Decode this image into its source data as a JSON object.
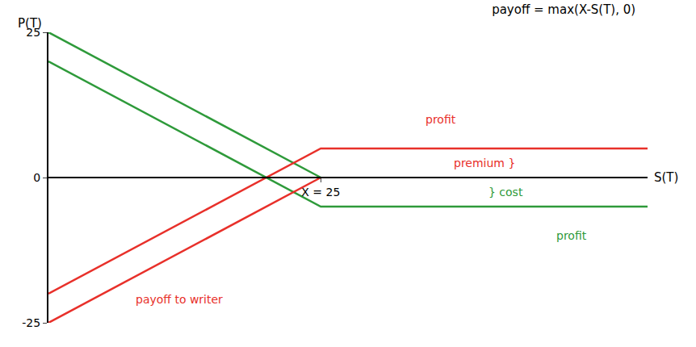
{
  "chart_data": {
    "type": "line",
    "title": "payoff = max(X-S(T), 0)",
    "x_label": "S(T)",
    "y_label": "P(T)",
    "xlim": [
      0,
      55
    ],
    "xticks": [
      {
        "value": 25,
        "label": "X = 25"
      }
    ],
    "ylim": [
      -25,
      25
    ],
    "yticks": [
      -25,
      0,
      25
    ],
    "grid": false,
    "series": [
      {
        "color": "#2e9a3a",
        "x": [
          0,
          25
        ],
        "values": [
          25,
          0
        ]
      },
      {
        "color": "#2e9a3a",
        "x": [
          0,
          25,
          55
        ],
        "values": [
          20,
          -5,
          -5
        ]
      },
      {
        "color": "#e8302a",
        "x": [
          0,
          25
        ],
        "values": [
          -25,
          0
        ]
      },
      {
        "color": "#e8302a",
        "x": [
          0,
          25,
          55
        ],
        "values": [
          -20,
          5,
          5
        ]
      }
    ],
    "annotations": [
      {
        "text": "profit",
        "x": 36,
        "y": 10,
        "color": "#e8302a"
      },
      {
        "text": "premium }",
        "x": 40,
        "y": 2.5,
        "color": "#e8302a"
      },
      {
        "text": "} cost",
        "x": 42,
        "y": -2.5,
        "color": "#2e9a3a"
      },
      {
        "text": "profit",
        "x": 48,
        "y": -10,
        "color": "#2e9a3a"
      },
      {
        "text": "payoff to writer",
        "x": 12,
        "y": -21,
        "color": "#e8302a"
      }
    ]
  }
}
